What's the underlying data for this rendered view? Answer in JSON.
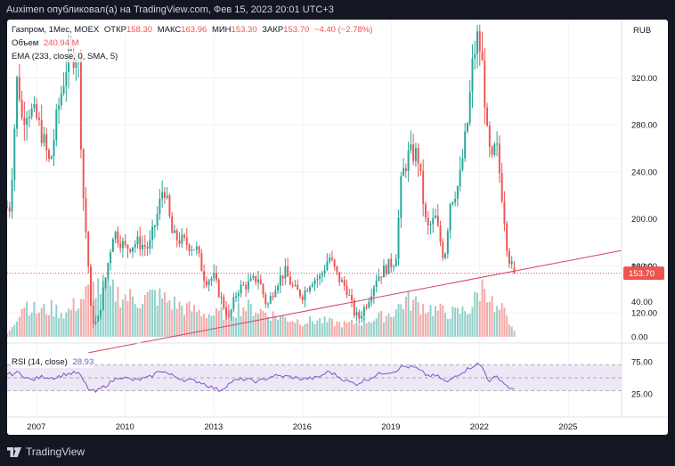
{
  "header": {
    "text": "Auximen опубликовал(а) на TradingView.com, Фев 15, 2023 20:01 UTC+3"
  },
  "legend": {
    "symbol": "Газпром, 1Мес, MOEX",
    "open_label": "ОТКР",
    "open": "158.30",
    "high_label": "МАКС",
    "high": "163.96",
    "low_label": "МИН",
    "low": "153.30",
    "close_label": "ЗАКР",
    "close": "153.70",
    "change": "−4.40 (−2.78%)",
    "volume_label": "Объем",
    "volume": "240.94 M",
    "ema_label": "EMA (233, close, 0, SMA, 5)",
    "rsi_label": "RSI (14, close)",
    "rsi_value": "28.93"
  },
  "footer": {
    "brand": "TradingView"
  },
  "colors": {
    "up": "#26a69a",
    "down": "#ef5350",
    "up_vol": "#8fcfc9",
    "down_vol": "#f3a7a5",
    "trendline": "#d4426a",
    "rsi": "#7e57c2",
    "rsi_band": "#ede7f6",
    "price_tag": "#ef5350"
  },
  "chart_data": [
    {
      "type": "candlestick",
      "title": "Газпром, 1Мес, MOEX",
      "currency": "RUB",
      "ylim": [
        95,
        365
      ],
      "y_ticks": [
        {
          "value": 320,
          "label": "320.00"
        },
        {
          "value": 280,
          "label": "280.00"
        },
        {
          "value": 240,
          "label": "240.00"
        },
        {
          "value": 200,
          "label": "200.00"
        },
        {
          "value": 160,
          "label": "160.00"
        },
        {
          "value": 120,
          "label": "120.00"
        }
      ],
      "last_price": 153.7,
      "last_price_label": "153.70",
      "x_range_years": [
        2006.0,
        2026.8
      ],
      "x_ticks": [
        {
          "year": 2007,
          "label": "2007"
        },
        {
          "year": 2010,
          "label": "2010"
        },
        {
          "year": 2013,
          "label": "2013"
        },
        {
          "year": 2016,
          "label": "2016"
        },
        {
          "year": 2019,
          "label": "2019"
        },
        {
          "year": 2022,
          "label": "2022"
        },
        {
          "year": 2025,
          "label": "2025"
        }
      ],
      "anchors": [
        [
          2006.1,
          210
        ],
        [
          2006.2,
          255
        ],
        [
          2006.35,
          325
        ],
        [
          2006.5,
          285
        ],
        [
          2006.7,
          295
        ],
        [
          2007.0,
          285
        ],
        [
          2007.2,
          270
        ],
        [
          2007.45,
          245
        ],
        [
          2007.7,
          290
        ],
        [
          2008.0,
          330
        ],
        [
          2008.25,
          340
        ],
        [
          2008.4,
          345
        ],
        [
          2008.55,
          230
        ],
        [
          2008.75,
          160
        ],
        [
          2008.85,
          115
        ],
        [
          2009.05,
          110
        ],
        [
          2009.3,
          145
        ],
        [
          2009.6,
          190
        ],
        [
          2010.0,
          175
        ],
        [
          2010.4,
          180
        ],
        [
          2010.8,
          175
        ],
        [
          2011.1,
          205
        ],
        [
          2011.3,
          230
        ],
        [
          2011.6,
          185
        ],
        [
          2012.0,
          180
        ],
        [
          2012.4,
          175
        ],
        [
          2012.7,
          148
        ],
        [
          2013.0,
          150
        ],
        [
          2013.2,
          135
        ],
        [
          2013.5,
          115
        ],
        [
          2013.8,
          140
        ],
        [
          2014.2,
          145
        ],
        [
          2014.5,
          150
        ],
        [
          2014.8,
          125
        ],
        [
          2015.1,
          145
        ],
        [
          2015.4,
          155
        ],
        [
          2015.7,
          140
        ],
        [
          2016.0,
          135
        ],
        [
          2016.3,
          148
        ],
        [
          2016.6,
          150
        ],
        [
          2016.9,
          168
        ],
        [
          2017.2,
          150
        ],
        [
          2017.5,
          140
        ],
        [
          2017.75,
          120
        ],
        [
          2017.9,
          115
        ],
        [
          2018.2,
          130
        ],
        [
          2018.5,
          150
        ],
        [
          2018.9,
          160
        ],
        [
          2019.15,
          165
        ],
        [
          2019.35,
          235
        ],
        [
          2019.6,
          255
        ],
        [
          2019.9,
          255
        ],
        [
          2020.2,
          190
        ],
        [
          2020.5,
          200
        ],
        [
          2020.8,
          165
        ],
        [
          2021.0,
          215
        ],
        [
          2021.3,
          230
        ],
        [
          2021.6,
          285
        ],
        [
          2021.75,
          330
        ],
        [
          2021.9,
          355
        ],
        [
          2022.05,
          340
        ],
        [
          2022.15,
          310
        ],
        [
          2022.25,
          270
        ],
        [
          2022.4,
          245
        ],
        [
          2022.55,
          265
        ],
        [
          2022.8,
          210
        ],
        [
          2022.95,
          170
        ],
        [
          2023.1,
          158
        ],
        [
          2023.2,
          153.7
        ]
      ],
      "trendline": [
        [
          2008.75,
          86
        ],
        [
          2026.8,
          173
        ]
      ],
      "last_candle": {
        "open": 158.3,
        "high": 163.96,
        "low": 153.3,
        "close": 153.7
      }
    },
    {
      "type": "bar",
      "title": "Объем",
      "ylim": [
        0,
        82
      ],
      "y_ticks": [
        {
          "value": 80,
          "label": "80.00"
        },
        {
          "value": 40,
          "label": "40.00"
        },
        {
          "value": 0,
          "label": "0.00"
        }
      ],
      "last_value": "240.94 M",
      "anchors": [
        [
          2006.0,
          3
        ],
        [
          2006.3,
          22
        ],
        [
          2006.6,
          42
        ],
        [
          2007.0,
          30
        ],
        [
          2007.5,
          34
        ],
        [
          2008.0,
          28
        ],
        [
          2008.5,
          45
        ],
        [
          2009.0,
          62
        ],
        [
          2009.5,
          55
        ],
        [
          2010.0,
          48
        ],
        [
          2010.5,
          44
        ],
        [
          2011.0,
          50
        ],
        [
          2011.5,
          42
        ],
        [
          2012.0,
          35
        ],
        [
          2012.5,
          30
        ],
        [
          2013.0,
          26
        ],
        [
          2013.5,
          30
        ],
        [
          2014.0,
          36
        ],
        [
          2014.5,
          32
        ],
        [
          2015.0,
          26
        ],
        [
          2015.5,
          22
        ],
        [
          2016.0,
          18
        ],
        [
          2016.5,
          20
        ],
        [
          2017.0,
          17
        ],
        [
          2017.5,
          15
        ],
        [
          2018.0,
          18
        ],
        [
          2018.5,
          22
        ],
        [
          2019.0,
          28
        ],
        [
          2019.5,
          44
        ],
        [
          2020.0,
          38
        ],
        [
          2020.5,
          32
        ],
        [
          2020.8,
          30
        ],
        [
          2021.2,
          28
        ],
        [
          2021.7,
          34
        ],
        [
          2022.0,
          55
        ],
        [
          2022.2,
          65
        ],
        [
          2022.5,
          30
        ],
        [
          2022.8,
          32
        ],
        [
          2023.0,
          12
        ],
        [
          2023.2,
          8
        ]
      ]
    },
    {
      "type": "line",
      "title": "RSI (14, close)",
      "ylim": [
        0,
        100
      ],
      "band": [
        30,
        70
      ],
      "y_ticks": [
        {
          "value": 75,
          "label": "75.00"
        },
        {
          "value": 25,
          "label": "25.00"
        }
      ],
      "last_value": 28.93,
      "anchors": [
        [
          2006.0,
          55
        ],
        [
          2006.4,
          58
        ],
        [
          2006.8,
          46
        ],
        [
          2007.2,
          52
        ],
        [
          2007.6,
          50
        ],
        [
          2008.0,
          56
        ],
        [
          2008.4,
          58
        ],
        [
          2008.8,
          30
        ],
        [
          2009.0,
          28
        ],
        [
          2009.4,
          40
        ],
        [
          2009.8,
          52
        ],
        [
          2010.3,
          46
        ],
        [
          2010.8,
          50
        ],
        [
          2011.2,
          62
        ],
        [
          2011.5,
          55
        ],
        [
          2012.0,
          47
        ],
        [
          2012.5,
          44
        ],
        [
          2012.8,
          38
        ],
        [
          2013.2,
          30
        ],
        [
          2013.6,
          44
        ],
        [
          2014.0,
          48
        ],
        [
          2014.5,
          44
        ],
        [
          2015.0,
          53
        ],
        [
          2015.5,
          52
        ],
        [
          2016.0,
          48
        ],
        [
          2016.5,
          50
        ],
        [
          2016.9,
          60
        ],
        [
          2017.4,
          47
        ],
        [
          2017.8,
          40
        ],
        [
          2018.2,
          48
        ],
        [
          2018.7,
          58
        ],
        [
          2019.1,
          60
        ],
        [
          2019.4,
          68
        ],
        [
          2019.8,
          66
        ],
        [
          2020.2,
          54
        ],
        [
          2020.6,
          52
        ],
        [
          2020.9,
          42
        ],
        [
          2021.2,
          54
        ],
        [
          2021.6,
          64
        ],
        [
          2021.9,
          72
        ],
        [
          2022.1,
          66
        ],
        [
          2022.3,
          45
        ],
        [
          2022.6,
          52
        ],
        [
          2022.9,
          38
        ],
        [
          2023.2,
          28.93
        ]
      ]
    }
  ]
}
